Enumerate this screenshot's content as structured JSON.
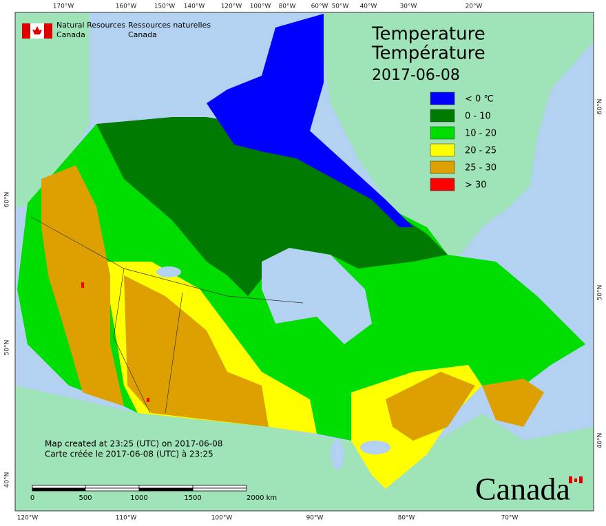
{
  "header": {
    "org_en": [
      "Natural Resources",
      "Canada"
    ],
    "org_fr": [
      "Ressources naturelles",
      "Canada"
    ]
  },
  "title": {
    "lines": [
      "Temperature",
      "Température",
      "2017-06-08"
    ]
  },
  "legend": [
    {
      "label": "< 0 ℃",
      "color": "#0000ff"
    },
    {
      "label": "0 - 10",
      "color": "#007a00"
    },
    {
      "label": "10 - 20",
      "color": "#00dd00"
    },
    {
      "label": "20 - 25",
      "color": "#ffff00"
    },
    {
      "label": "25 - 30",
      "color": "#dda000"
    },
    {
      "label": "> 30",
      "color": "#ff0000"
    }
  ],
  "footer": {
    "notes": [
      "Map created at 23:25 (UTC) on 2017-06-08",
      "Carte créée le 2017-06-08 (UTC) à 23:25"
    ]
  },
  "scale_bar": {
    "labels": [
      "0",
      "500",
      "1000",
      "1500",
      "2000 km"
    ]
  },
  "graticule": {
    "top": [
      "170°W",
      "160°W",
      "150°W",
      "140°W",
      "120°W",
      "100°W",
      "80°W",
      "60°W",
      "50°W",
      "40°W",
      "30°W",
      "20°W"
    ],
    "bottom": [
      "120°W",
      "110°W",
      "100°W",
      "90°W",
      "80°W",
      "70°W"
    ],
    "left": [
      "60°N",
      "50°N",
      "40°N"
    ],
    "right": [
      "60°N",
      "50°N",
      "40°N"
    ]
  },
  "wordmark": "Canada"
}
